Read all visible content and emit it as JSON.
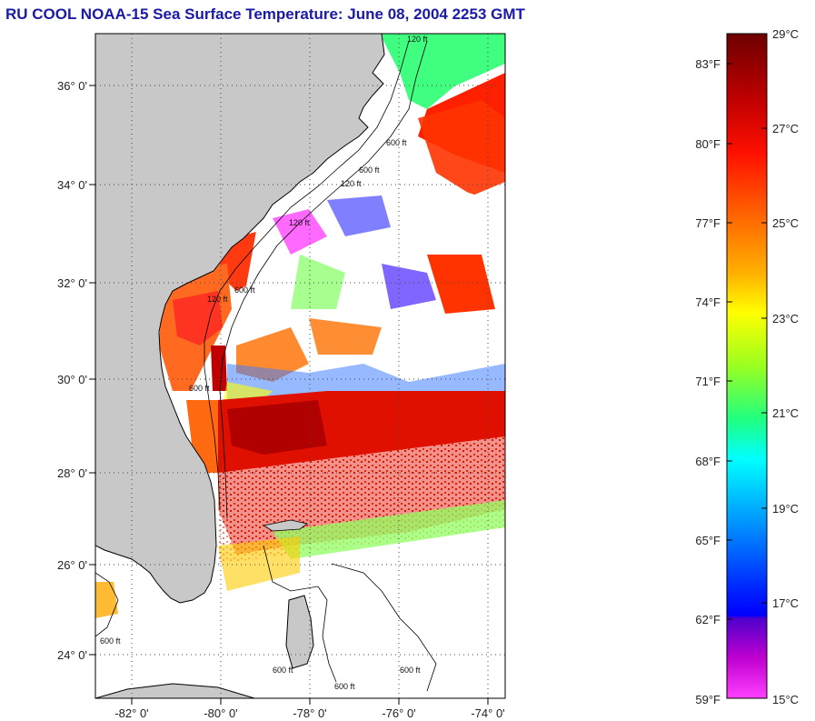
{
  "title": "RU COOL  NOAA-15  Sea Surface Temperature:  June 08, 2004 2253 GMT",
  "map": {
    "latitude_labels": [
      "36° 0'",
      "34° 0'",
      "32° 0'",
      "30° 0'",
      "28° 0'",
      "26° 0'",
      "24° 0'"
    ],
    "longitude_labels": [
      "-82° 0'",
      "-80° 0'",
      "-78° 0'",
      "-76° 0'",
      "-74° 0'"
    ],
    "contour_labels": [
      "120 ft",
      "600 ft",
      "120 ft",
      "600 ft",
      "120 ft",
      "600 ft",
      "120 ft",
      "600 ft",
      "600 ft",
      "600 ft",
      "600 ft",
      "600 ft"
    ],
    "colors": {
      "land": "#c8c8c8",
      "ocean_missing": "#ffffff",
      "grid": "#555555"
    }
  },
  "colorbar": {
    "fahrenheit_labels": [
      "83°F",
      "80°F",
      "77°F",
      "74°F",
      "71°F",
      "68°F",
      "65°F",
      "62°F",
      "59°F"
    ],
    "celsius_labels": [
      "29°C",
      "27°C",
      "25°C",
      "23°C",
      "21°C",
      "19°C",
      "17°C",
      "15°C"
    ],
    "min_c": 15,
    "max_c": 29,
    "gradient": [
      "#7a0000",
      "#c00000",
      "#ff0000",
      "#ff6600",
      "#ffaa00",
      "#ffff00",
      "#88ff00",
      "#00ff66",
      "#00ffff",
      "#00aaff",
      "#0044ff",
      "#0000ff",
      "#8800cc",
      "#cc00cc",
      "#ff44ff"
    ]
  }
}
